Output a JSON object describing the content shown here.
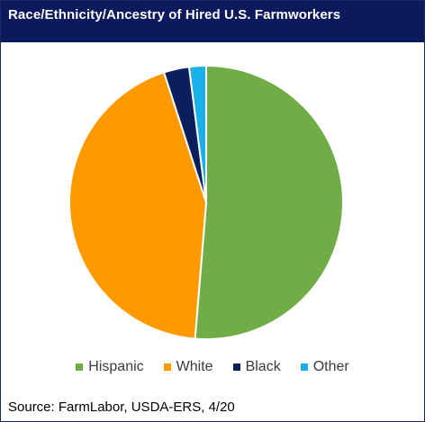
{
  "title": "Race/Ethnicity/Ancestry of Hired U.S. Farmworkers",
  "source": "Source: FarmLabor, USDA-ERS, 4/20",
  "colors": {
    "header_bg": "#0b1a5c",
    "Hispanic": "#70ad47",
    "White": "#ff9900",
    "Black": "#0b1f5c",
    "Other": "#1bb1e8"
  },
  "chart_data": {
    "type": "pie",
    "title": "Race/Ethnicity/Ancestry of Hired U.S. Farmworkers",
    "legend_position": "bottom",
    "categories": [
      "Hispanic",
      "White",
      "Black",
      "Other"
    ],
    "values": [
      51.3,
      43.7,
      3.0,
      2.0
    ],
    "unit": "%"
  }
}
